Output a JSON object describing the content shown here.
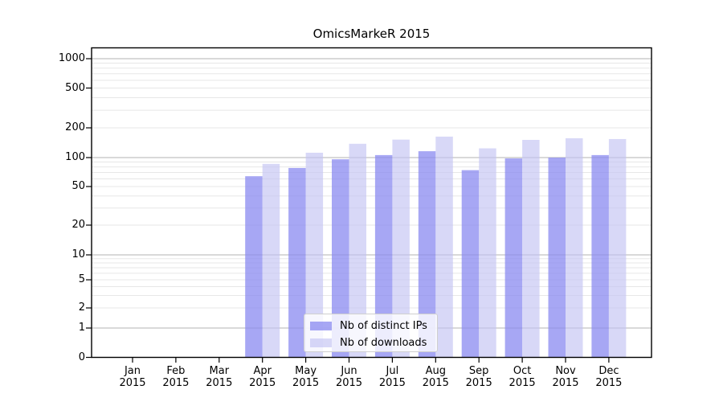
{
  "title": "OmicsMarkeR 2015",
  "y_axis": {
    "tick_labels": [
      "0",
      "1",
      "2",
      "5",
      "10",
      "20",
      "50",
      "100",
      "200",
      "500",
      "1000"
    ]
  },
  "x_axis": {
    "months": [
      "Jan",
      "Feb",
      "Mar",
      "Apr",
      "May",
      "Jun",
      "Jul",
      "Aug",
      "Sep",
      "Oct",
      "Nov",
      "Dec"
    ],
    "year": "2015"
  },
  "legend": {
    "items": [
      {
        "label": "Nb of distinct IPs",
        "color": "#a7a7f3",
        "fill": "rgba(138,138,240,0.75)"
      },
      {
        "label": "Nb of downloads",
        "color": "#d8d8f8",
        "fill": "rgba(195,195,243,0.65)"
      }
    ]
  },
  "chart_data": {
    "type": "bar",
    "title": "OmicsMarkeR 2015",
    "categories": [
      "Jan 2015",
      "Feb 2015",
      "Mar 2015",
      "Apr 2015",
      "May 2015",
      "Jun 2015",
      "Jul 2015",
      "Aug 2015",
      "Sep 2015",
      "Oct 2015",
      "Nov 2015",
      "Dec 2015"
    ],
    "series": [
      {
        "name": "Nb of distinct IPs",
        "color": "#a7a7f3",
        "fill": "rgba(138,138,240,0.75)",
        "values": [
          0,
          0,
          0,
          64,
          78,
          96,
          106,
          116,
          74,
          98,
          100,
          106
        ]
      },
      {
        "name": "Nb of downloads",
        "color": "#d8d8f8",
        "fill": "rgba(195,195,243,0.65)",
        "values": [
          0,
          0,
          0,
          86,
          112,
          138,
          152,
          163,
          124,
          151,
          157,
          154
        ]
      }
    ],
    "yscale": "log-like with linear 0-1 segment",
    "yticks": [
      0,
      1,
      2,
      5,
      10,
      20,
      50,
      100,
      200,
      500,
      1000
    ],
    "ylim": [
      0,
      1300
    ],
    "grid": "horizontal major (powers of 10, gray) + minor (light gray)",
    "legend_position": "lower center inside plot",
    "colors": {
      "axis": "#000000",
      "grid_major": "#b3b3b3",
      "grid_minor": "#e7e7e7"
    }
  }
}
